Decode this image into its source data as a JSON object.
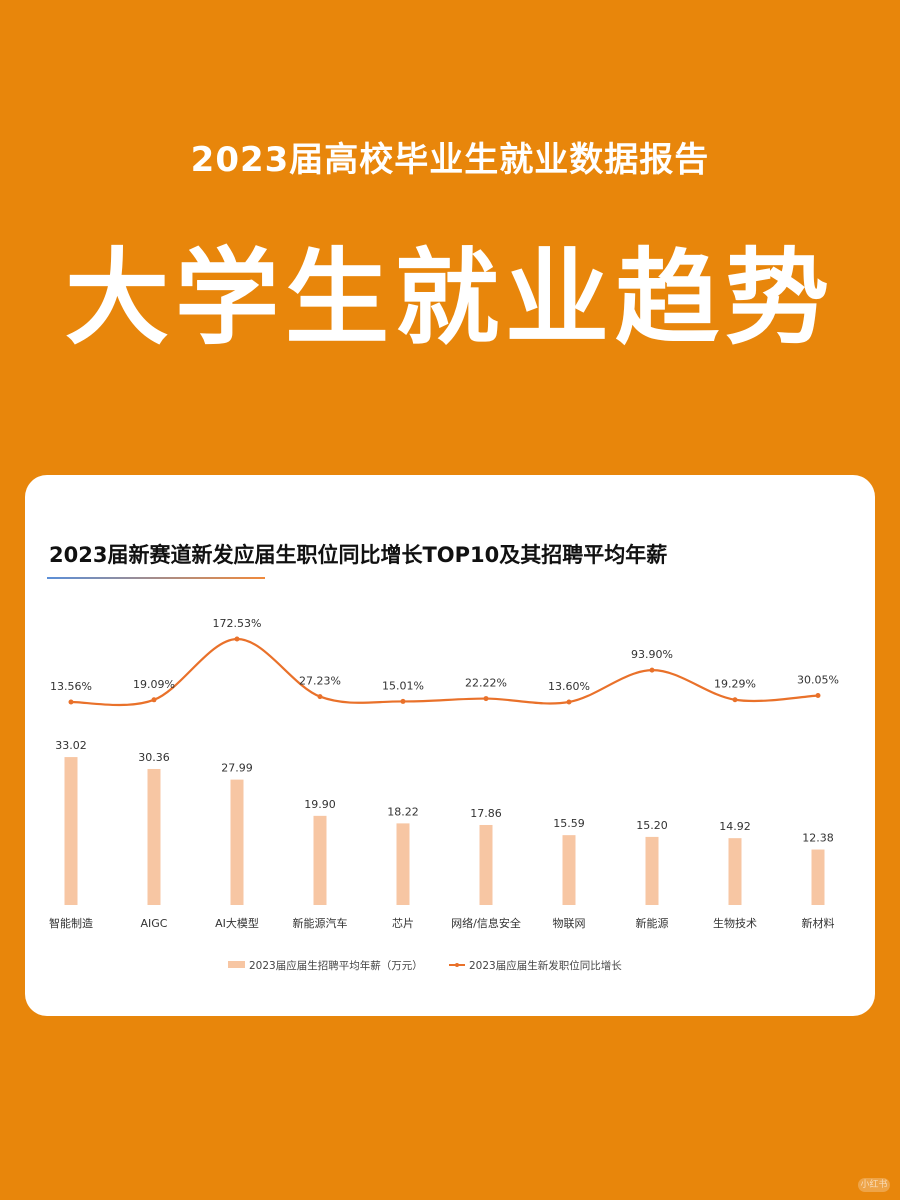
{
  "header": {
    "subtitle": "2023届高校毕业生就业数据报告",
    "title": "大学生就业趋势"
  },
  "card": {
    "chart_title": "2023届新赛道新发应届生职位同比增长TOP10及其招聘平均年薪"
  },
  "legend": {
    "bar_label": "2023届应届生招聘平均年薪（万元）",
    "line_label": "2023届应届生新发职位同比增长"
  },
  "colors": {
    "background": "#E8860B",
    "bar": "#F7C6A3",
    "line": "#E9712A"
  },
  "watermark": "小红书",
  "chart_data": {
    "type": "bar+line",
    "title": "2023届新赛道新发应届生职位同比增长TOP10及其招聘平均年薪",
    "categories": [
      "智能制造",
      "AIGC",
      "AI大模型",
      "新能源汽车",
      "芯片",
      "网络/信息安全",
      "物联网",
      "新能源",
      "生物技术",
      "新材料"
    ],
    "series": [
      {
        "name": "2023届应届生招聘平均年薪（万元）",
        "type": "bar",
        "values": [
          33.02,
          30.36,
          27.99,
          19.9,
          18.22,
          17.86,
          15.59,
          15.2,
          14.92,
          12.38
        ],
        "labels": [
          "33.02",
          "30.36",
          "27.99",
          "19.90",
          "18.22",
          "17.86",
          "15.59",
          "15.20",
          "14.92",
          "12.38"
        ]
      },
      {
        "name": "2023届应届生新发职位同比增长",
        "type": "line",
        "values": [
          13.56,
          19.09,
          172.53,
          27.23,
          15.01,
          22.22,
          13.6,
          93.9,
          19.29,
          30.05
        ],
        "labels": [
          "13.56%",
          "19.09%",
          "172.53%",
          "27.23%",
          "15.01%",
          "22.22%",
          "13.60%",
          "93.90%",
          "19.29%",
          "30.05%"
        ]
      }
    ],
    "xlabel": "",
    "ylabel": "",
    "grid": false,
    "legend_position": "bottom"
  }
}
